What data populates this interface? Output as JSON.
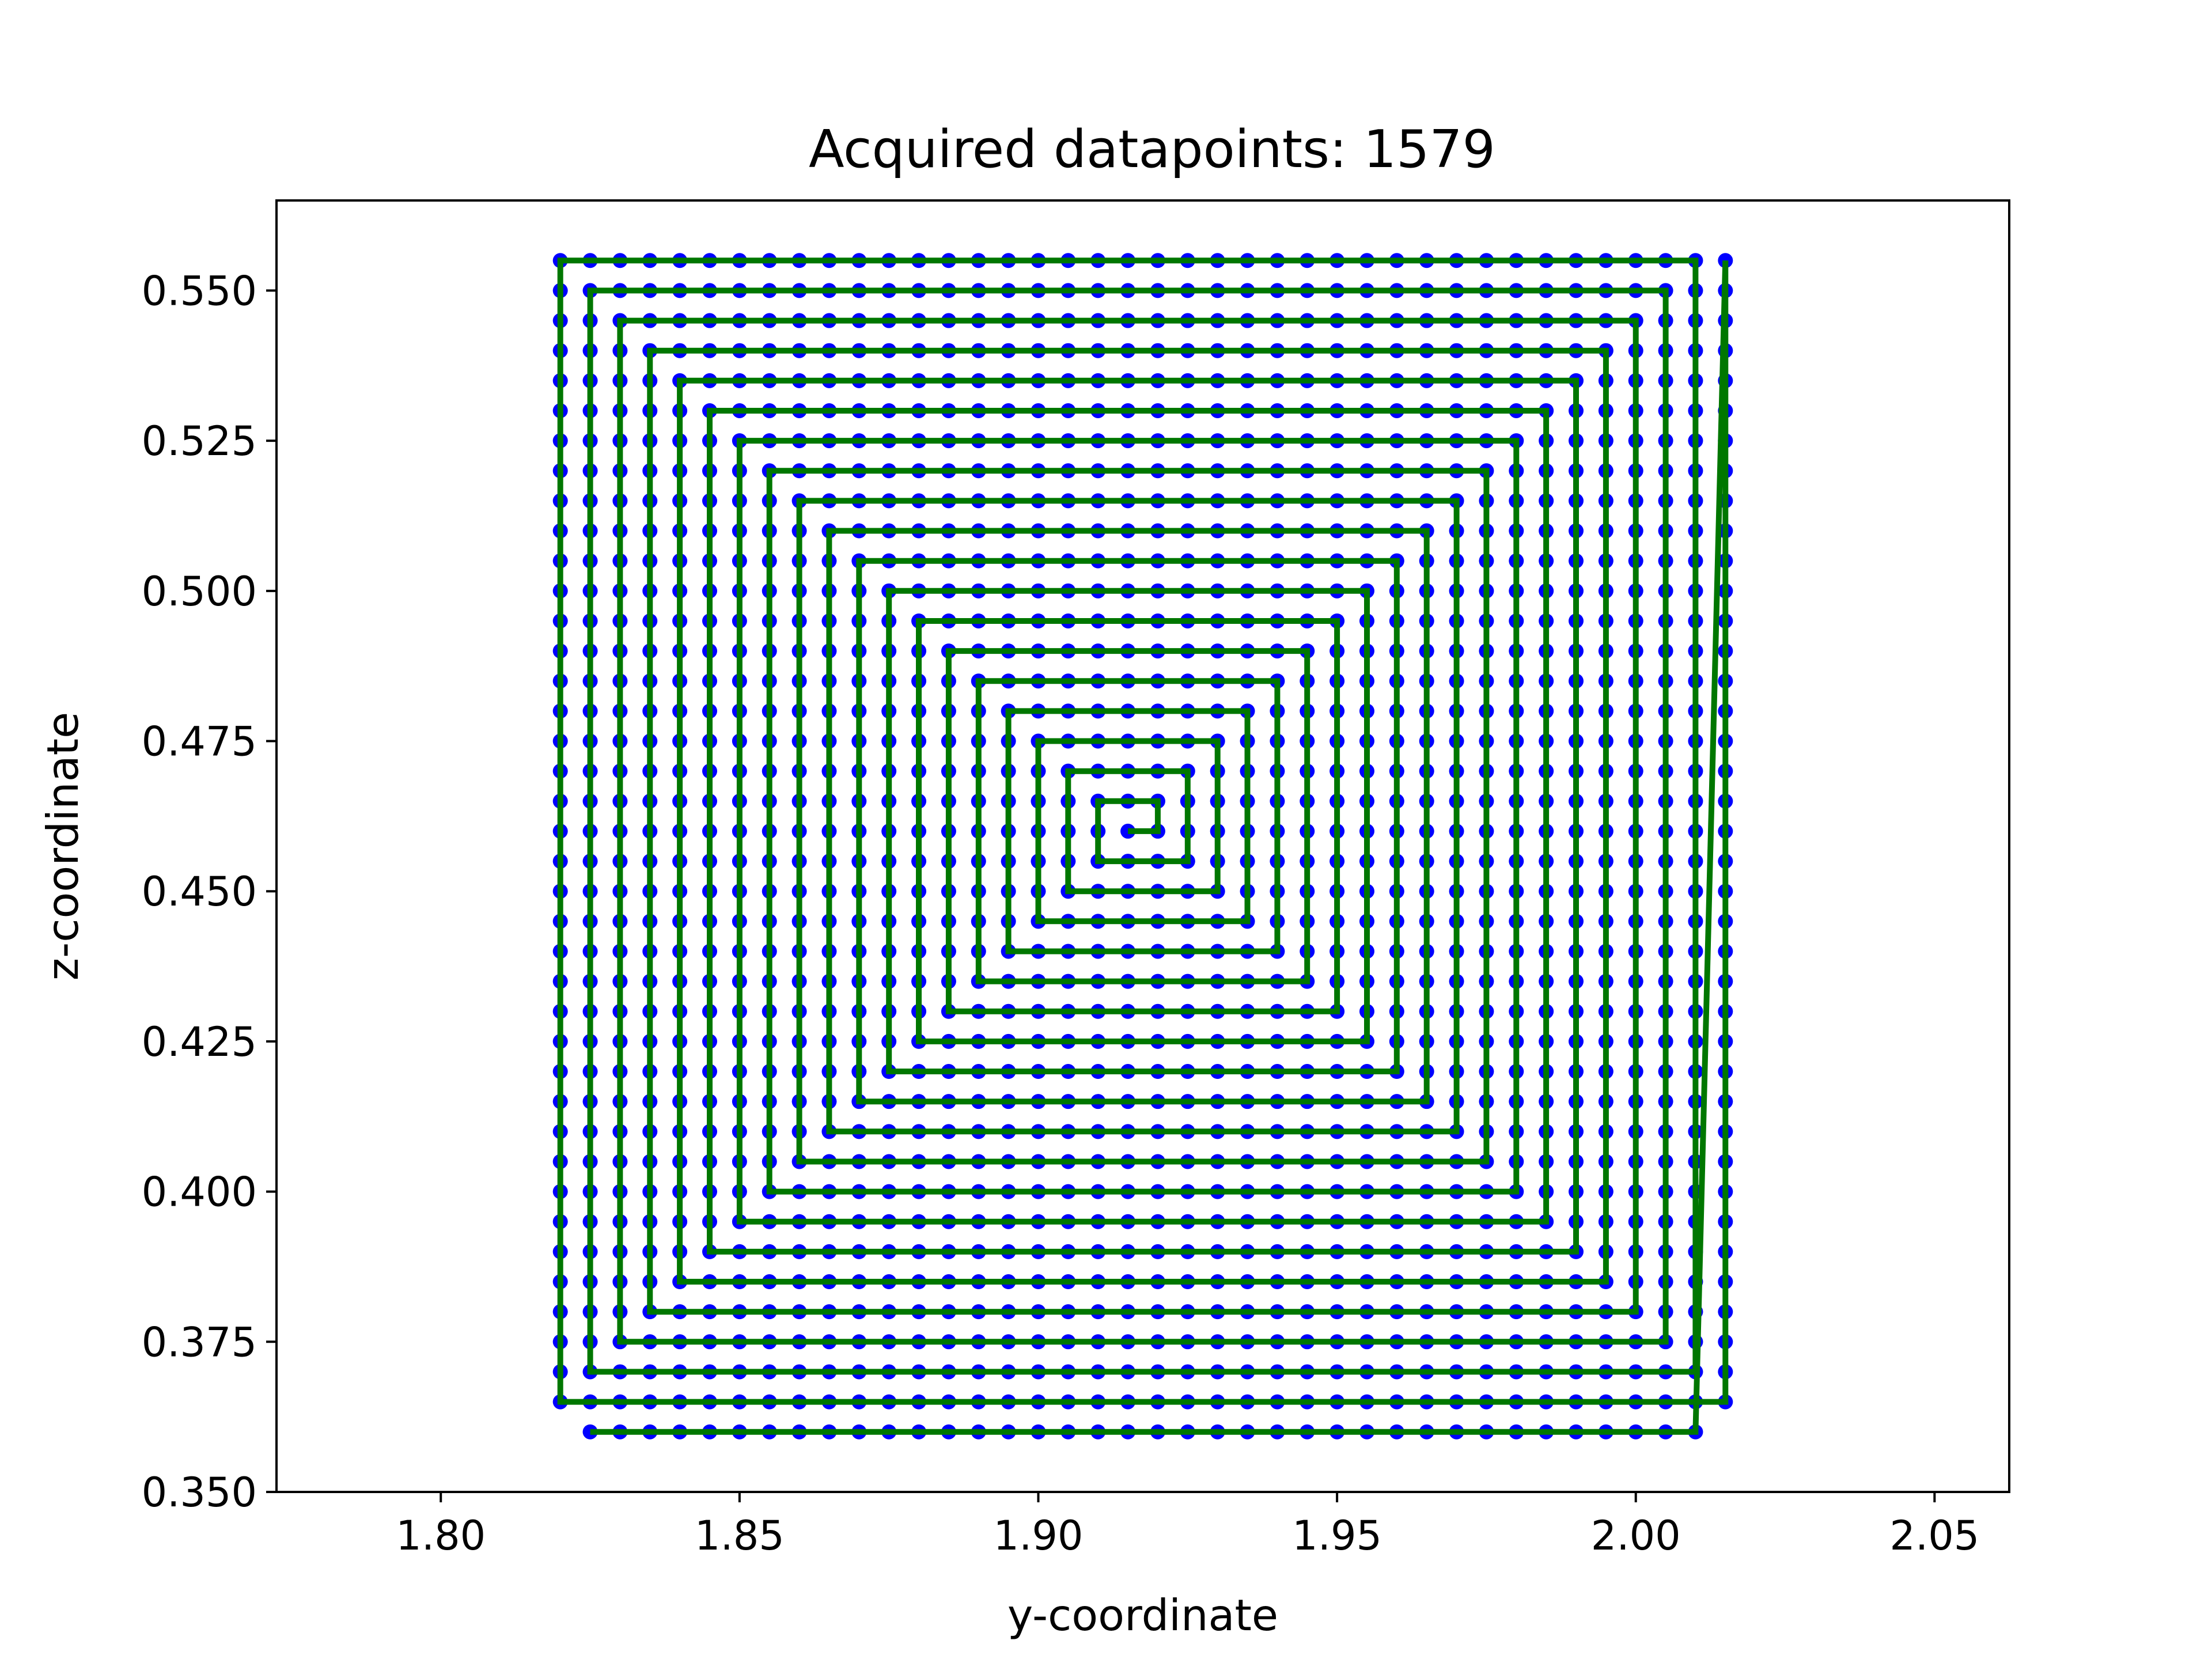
{
  "chart_data": {
    "type": "scatter",
    "title": "Acquired datapoints: 1579",
    "xlabel": "y-coordinate",
    "ylabel": "z-coordinate",
    "xlim": [
      1.7725,
      2.0625
    ],
    "ylim": [
      0.35,
      0.565
    ],
    "xticks": [
      1.8,
      1.85,
      1.9,
      1.95,
      2.0,
      2.05
    ],
    "xtick_labels": [
      "1.80",
      "1.85",
      "1.90",
      "1.95",
      "2.00",
      "2.05"
    ],
    "yticks": [
      0.35,
      0.375,
      0.4,
      0.425,
      0.45,
      0.475,
      0.5,
      0.525,
      0.55
    ],
    "ytick_labels": [
      "0.350",
      "0.375",
      "0.400",
      "0.425",
      "0.450",
      "0.475",
      "0.500",
      "0.525",
      "0.550"
    ],
    "grid": false,
    "series": [
      {
        "kind": "points",
        "color": "#0000ff",
        "description": "acquired datapoints along square spiral scan path",
        "spiral": {
          "center": [
            1.915,
            0.46
          ],
          "step_y": 0.005,
          "step_z": 0.005,
          "sample_spacing_y": 0.005,
          "sample_spacing_z": 0.005,
          "y_range": [
            1.82,
            2.015
          ],
          "z_range": [
            0.36,
            0.555
          ]
        }
      },
      {
        "kind": "line",
        "color": "#007700",
        "description": "scan trajectory (square spiral)",
        "spiral": {
          "center": [
            1.915,
            0.46
          ],
          "y_range": [
            1.82,
            2.015
          ],
          "z_range": [
            0.36,
            0.555
          ]
        }
      }
    ]
  }
}
